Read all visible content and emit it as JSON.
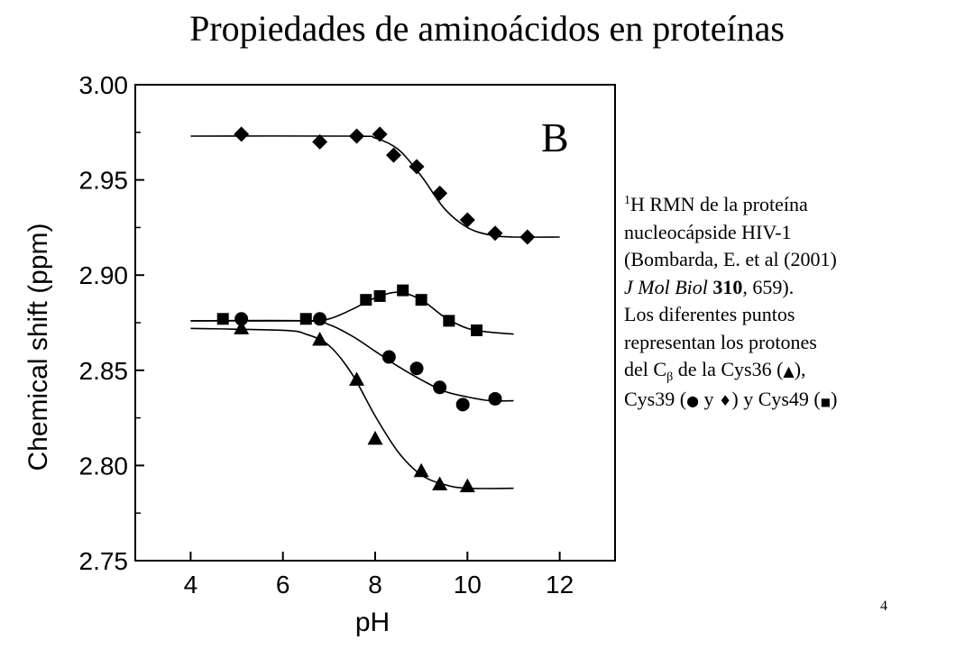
{
  "slide": {
    "title": "Propiedades de aminoácidos en proteínas",
    "page_number": "4"
  },
  "caption": {
    "sup": "1",
    "line1": "H RMN de la proteína",
    "line2": "nucleocápside HIV-1",
    "line3": "(Bombarda, E. et al (2001)",
    "journal": "J Mol Biol",
    "volume": "310",
    "pages_suffix": ", 659).",
    "line5": "Los diferentes puntos",
    "line6": "representan los protones",
    "l7_pre": "del C",
    "l7_sub": "β",
    "l7_mid": " de la Cys36 (",
    "l7_sym": "▲",
    "l7_post": "),",
    "l8_pre": "Cys39 (",
    "l8_dot": "●",
    "l8_y": " y ",
    "l8_diamond": "♦",
    "l8_mid": ") y Cys49 (",
    "l8_square": "■",
    "l8_post": ")"
  },
  "chart_data": {
    "type": "scatter",
    "panel_label": "B",
    "xlabel": "pH",
    "ylabel": "Chemical shift (ppm)",
    "xlim": [
      2.8,
      13.2
    ],
    "ylim": [
      2.75,
      3.0
    ],
    "xticks": [
      4,
      6,
      8,
      10,
      12
    ],
    "xtick_labels": [
      "4",
      "6",
      "8",
      "10",
      "12"
    ],
    "yticks": [
      2.75,
      2.8,
      2.85,
      2.9,
      2.95,
      3.0
    ],
    "ytick_labels": [
      "2.75",
      "2.80",
      "2.85",
      "2.90",
      "2.95",
      "3.00"
    ],
    "grid": false,
    "series": [
      {
        "marker": "diamond",
        "points": [
          [
            5.1,
            2.974
          ],
          [
            6.8,
            2.97
          ],
          [
            7.6,
            2.973
          ],
          [
            8.1,
            2.974
          ],
          [
            8.4,
            2.963
          ],
          [
            8.9,
            2.957
          ],
          [
            9.4,
            2.943
          ],
          [
            10.0,
            2.929
          ],
          [
            10.6,
            2.922
          ],
          [
            11.3,
            2.92
          ]
        ],
        "fit": [
          [
            4.0,
            2.973
          ],
          [
            7.5,
            2.973
          ],
          [
            8.0,
            2.972
          ],
          [
            8.5,
            2.966
          ],
          [
            9.0,
            2.952
          ],
          [
            9.5,
            2.935
          ],
          [
            10.0,
            2.925
          ],
          [
            10.5,
            2.921
          ],
          [
            11.0,
            2.92
          ],
          [
            12.0,
            2.92
          ]
        ]
      },
      {
        "marker": "square",
        "points": [
          [
            4.7,
            2.877
          ],
          [
            6.5,
            2.877
          ],
          [
            7.8,
            2.887
          ],
          [
            8.1,
            2.889
          ],
          [
            8.6,
            2.892
          ],
          [
            9.0,
            2.887
          ],
          [
            9.6,
            2.876
          ],
          [
            10.2,
            2.871
          ]
        ],
        "fit": [
          [
            4.0,
            2.876
          ],
          [
            6.5,
            2.876
          ],
          [
            7.0,
            2.877
          ],
          [
            7.5,
            2.882
          ],
          [
            8.0,
            2.888
          ],
          [
            8.5,
            2.891
          ],
          [
            9.0,
            2.887
          ],
          [
            9.5,
            2.878
          ],
          [
            10.0,
            2.872
          ],
          [
            10.5,
            2.87
          ],
          [
            11.0,
            2.869
          ]
        ]
      },
      {
        "marker": "circle",
        "points": [
          [
            5.1,
            2.877
          ],
          [
            6.8,
            2.877
          ],
          [
            8.3,
            2.857
          ],
          [
            8.9,
            2.851
          ],
          [
            9.4,
            2.841
          ],
          [
            9.9,
            2.832
          ],
          [
            10.6,
            2.835
          ]
        ],
        "fit": [
          [
            4.0,
            2.876
          ],
          [
            6.5,
            2.876
          ],
          [
            7.0,
            2.874
          ],
          [
            7.5,
            2.868
          ],
          [
            8.0,
            2.86
          ],
          [
            8.5,
            2.852
          ],
          [
            9.0,
            2.845
          ],
          [
            9.5,
            2.839
          ],
          [
            10.0,
            2.836
          ],
          [
            10.5,
            2.834
          ],
          [
            11.0,
            2.834
          ]
        ]
      },
      {
        "marker": "triangle",
        "points": [
          [
            5.1,
            2.872
          ],
          [
            6.8,
            2.866
          ],
          [
            7.6,
            2.845
          ],
          [
            8.0,
            2.814
          ],
          [
            9.0,
            2.797
          ],
          [
            9.4,
            2.79
          ],
          [
            10.0,
            2.789
          ]
        ],
        "fit": [
          [
            4.0,
            2.872
          ],
          [
            6.0,
            2.871
          ],
          [
            6.5,
            2.869
          ],
          [
            7.0,
            2.863
          ],
          [
            7.5,
            2.848
          ],
          [
            8.0,
            2.826
          ],
          [
            8.5,
            2.807
          ],
          [
            9.0,
            2.795
          ],
          [
            9.5,
            2.79
          ],
          [
            10.0,
            2.788
          ],
          [
            11.0,
            2.788
          ]
        ]
      }
    ]
  }
}
